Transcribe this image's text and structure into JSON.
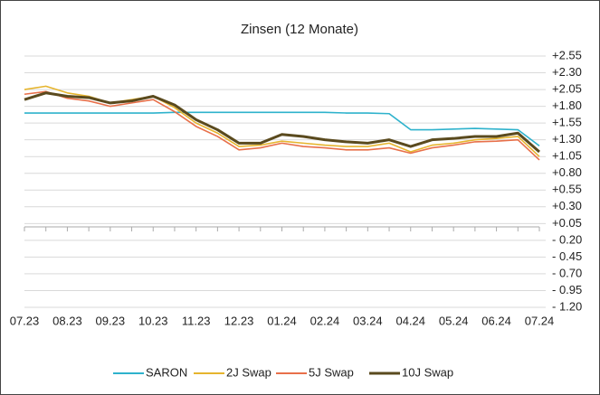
{
  "chart_data": {
    "type": "line",
    "title": "Zinsen (12 Monate)",
    "categories": [
      "07.23",
      null,
      "08.23",
      null,
      "09.23",
      null,
      "10.23",
      null,
      "11.23",
      null,
      "12.23",
      null,
      "01.24",
      null,
      "02.24",
      null,
      "03.24",
      null,
      "04.24",
      null,
      "05.24",
      null,
      "06.24",
      null,
      "07.24"
    ],
    "series": [
      {
        "name": "SARON",
        "color": "#2eb2cc",
        "values": [
          1.7,
          1.7,
          1.7,
          1.7,
          1.7,
          1.7,
          1.7,
          1.71,
          1.71,
          1.71,
          1.71,
          1.71,
          1.71,
          1.71,
          1.71,
          1.7,
          1.7,
          1.69,
          1.45,
          1.45,
          1.46,
          1.47,
          1.46,
          1.45,
          1.21
        ]
      },
      {
        "name": "2J Swap",
        "color": "#e6b52e",
        "values": [
          2.05,
          2.1,
          2.0,
          1.95,
          1.85,
          1.9,
          1.95,
          1.78,
          1.55,
          1.4,
          1.2,
          1.22,
          1.28,
          1.25,
          1.22,
          1.2,
          1.2,
          1.25,
          1.12,
          1.22,
          1.25,
          1.3,
          1.32,
          1.35,
          1.05
        ]
      },
      {
        "name": "5J Swap",
        "color": "#e8704a",
        "values": [
          1.98,
          2.02,
          1.92,
          1.88,
          1.8,
          1.85,
          1.9,
          1.72,
          1.5,
          1.35,
          1.15,
          1.18,
          1.25,
          1.2,
          1.18,
          1.15,
          1.15,
          1.18,
          1.1,
          1.18,
          1.22,
          1.27,
          1.28,
          1.3,
          1.0
        ]
      },
      {
        "name": "10J Swap",
        "color": "#5a4a1e",
        "values": [
          1.9,
          2.0,
          1.95,
          1.93,
          1.85,
          1.88,
          1.95,
          1.82,
          1.6,
          1.45,
          1.25,
          1.25,
          1.38,
          1.35,
          1.3,
          1.27,
          1.25,
          1.3,
          1.2,
          1.3,
          1.32,
          1.35,
          1.35,
          1.4,
          1.12
        ]
      }
    ],
    "ylim": [
      -1.2,
      2.55
    ],
    "yticks": [
      {
        "value": 2.55,
        "label": "+2.55"
      },
      {
        "value": 2.3,
        "label": "+2.30"
      },
      {
        "value": 2.05,
        "label": "+2.05"
      },
      {
        "value": 1.8,
        "label": "+1.80"
      },
      {
        "value": 1.55,
        "label": "+1.55"
      },
      {
        "value": 1.3,
        "label": "+1.30"
      },
      {
        "value": 1.05,
        "label": "+1.05"
      },
      {
        "value": 0.8,
        "label": "+0.80"
      },
      {
        "value": 0.55,
        "label": "+0.55"
      },
      {
        "value": 0.3,
        "label": "+0.30"
      },
      {
        "value": 0.05,
        "label": "+0.05"
      },
      {
        "value": -0.2,
        "label": "- 0.20"
      },
      {
        "value": -0.45,
        "label": "- 0.45"
      },
      {
        "value": -0.7,
        "label": "- 0.70"
      },
      {
        "value": -0.95,
        "label": "- 0.95"
      },
      {
        "value": -1.2,
        "label": "- 1.20"
      }
    ],
    "grid": true
  }
}
